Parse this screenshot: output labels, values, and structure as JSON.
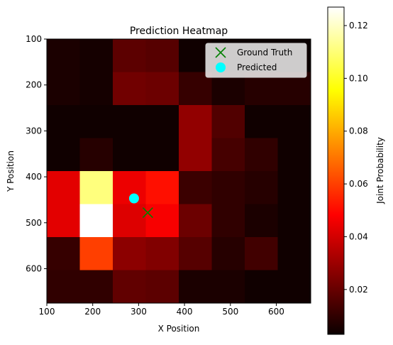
{
  "chart_data": {
    "type": "heatmap",
    "title": "Prediction Heatmap",
    "xlabel": "X Position",
    "ylabel": "Y Position",
    "colorbar_label": "Joint Probability",
    "colormap": "hot",
    "vmin": 0.003,
    "vmax": 0.127,
    "x_extent": [
      100,
      675
    ],
    "y_extent": [
      675,
      100
    ],
    "x_ticks": [
      100,
      200,
      300,
      400,
      500,
      600
    ],
    "y_ticks": [
      100,
      200,
      300,
      400,
      500,
      600
    ],
    "colorbar_ticks": [
      0.02,
      0.04,
      0.06,
      0.08,
      0.1,
      0.12
    ],
    "grid": false,
    "legend_position": "top-right",
    "grid_values": [
      [
        0.006,
        0.005,
        0.018,
        0.017,
        0.004,
        0.003,
        0.003,
        0.003
      ],
      [
        0.006,
        0.005,
        0.022,
        0.021,
        0.011,
        0.006,
        0.008,
        0.008
      ],
      [
        0.004,
        0.004,
        0.004,
        0.004,
        0.028,
        0.016,
        0.004,
        0.004
      ],
      [
        0.004,
        0.008,
        0.004,
        0.004,
        0.028,
        0.014,
        0.01,
        0.004
      ],
      [
        0.043,
        0.111,
        0.045,
        0.051,
        0.012,
        0.01,
        0.008,
        0.004
      ],
      [
        0.043,
        0.127,
        0.042,
        0.047,
        0.021,
        0.01,
        0.006,
        0.004
      ],
      [
        0.011,
        0.06,
        0.027,
        0.025,
        0.017,
        0.008,
        0.013,
        0.004
      ],
      [
        0.01,
        0.01,
        0.019,
        0.018,
        0.006,
        0.006,
        0.004,
        0.004
      ]
    ],
    "legend": [
      {
        "label": "Ground Truth",
        "marker": "x",
        "color": "#008000"
      },
      {
        "label": "Predicted",
        "marker": "circle",
        "color": "#00ffff"
      }
    ],
    "points": {
      "ground_truth": {
        "x": 320,
        "y": 478
      },
      "predicted": {
        "x": 290,
        "y": 447
      }
    }
  }
}
